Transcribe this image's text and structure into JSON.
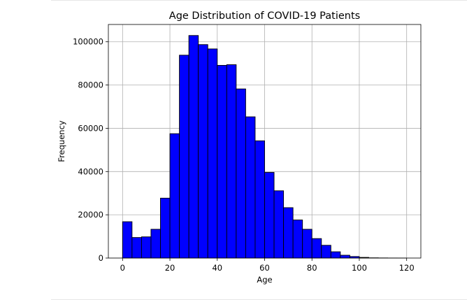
{
  "chart_data": {
    "type": "bar",
    "subtype": "histogram",
    "title": "Age Distribution of COVID-19 Patients",
    "xlabel": "Age",
    "ylabel": "Frequency",
    "xlim": [
      -6,
      126
    ],
    "ylim": [
      0,
      108000
    ],
    "xticks": [
      0,
      20,
      40,
      60,
      80,
      100,
      120
    ],
    "yticks": [
      0,
      20000,
      40000,
      60000,
      80000,
      100000
    ],
    "grid": true,
    "legend": "none",
    "bar_color": "#0000ff",
    "edge_color": "#000000",
    "bins": [
      {
        "x0": 0,
        "x1": 4,
        "count": 16800
      },
      {
        "x0": 4,
        "x1": 8,
        "count": 9500
      },
      {
        "x0": 8,
        "x1": 12,
        "count": 9800
      },
      {
        "x0": 12,
        "x1": 16,
        "count": 13300
      },
      {
        "x0": 16,
        "x1": 20,
        "count": 27700
      },
      {
        "x0": 20,
        "x1": 24,
        "count": 57500
      },
      {
        "x0": 24,
        "x1": 28,
        "count": 93800
      },
      {
        "x0": 28,
        "x1": 32,
        "count": 102900
      },
      {
        "x0": 32,
        "x1": 36,
        "count": 98700
      },
      {
        "x0": 36,
        "x1": 40,
        "count": 96700
      },
      {
        "x0": 40,
        "x1": 44,
        "count": 89100
      },
      {
        "x0": 44,
        "x1": 48,
        "count": 89400
      },
      {
        "x0": 48,
        "x1": 52,
        "count": 78200
      },
      {
        "x0": 52,
        "x1": 56,
        "count": 65300
      },
      {
        "x0": 56,
        "x1": 60,
        "count": 54200
      },
      {
        "x0": 60,
        "x1": 64,
        "count": 39600
      },
      {
        "x0": 64,
        "x1": 68,
        "count": 31100
      },
      {
        "x0": 68,
        "x1": 72,
        "count": 23300
      },
      {
        "x0": 72,
        "x1": 76,
        "count": 17600
      },
      {
        "x0": 76,
        "x1": 80,
        "count": 13300
      },
      {
        "x0": 80,
        "x1": 84,
        "count": 9000
      },
      {
        "x0": 84,
        "x1": 88,
        "count": 5900
      },
      {
        "x0": 88,
        "x1": 92,
        "count": 2900
      },
      {
        "x0": 92,
        "x1": 96,
        "count": 1300
      },
      {
        "x0": 96,
        "x1": 100,
        "count": 700
      },
      {
        "x0": 100,
        "x1": 104,
        "count": 300
      },
      {
        "x0": 104,
        "x1": 108,
        "count": 100
      },
      {
        "x0": 108,
        "x1": 112,
        "count": 50
      },
      {
        "x0": 112,
        "x1": 116,
        "count": 20
      },
      {
        "x0": 116,
        "x1": 120,
        "count": 10
      }
    ]
  }
}
